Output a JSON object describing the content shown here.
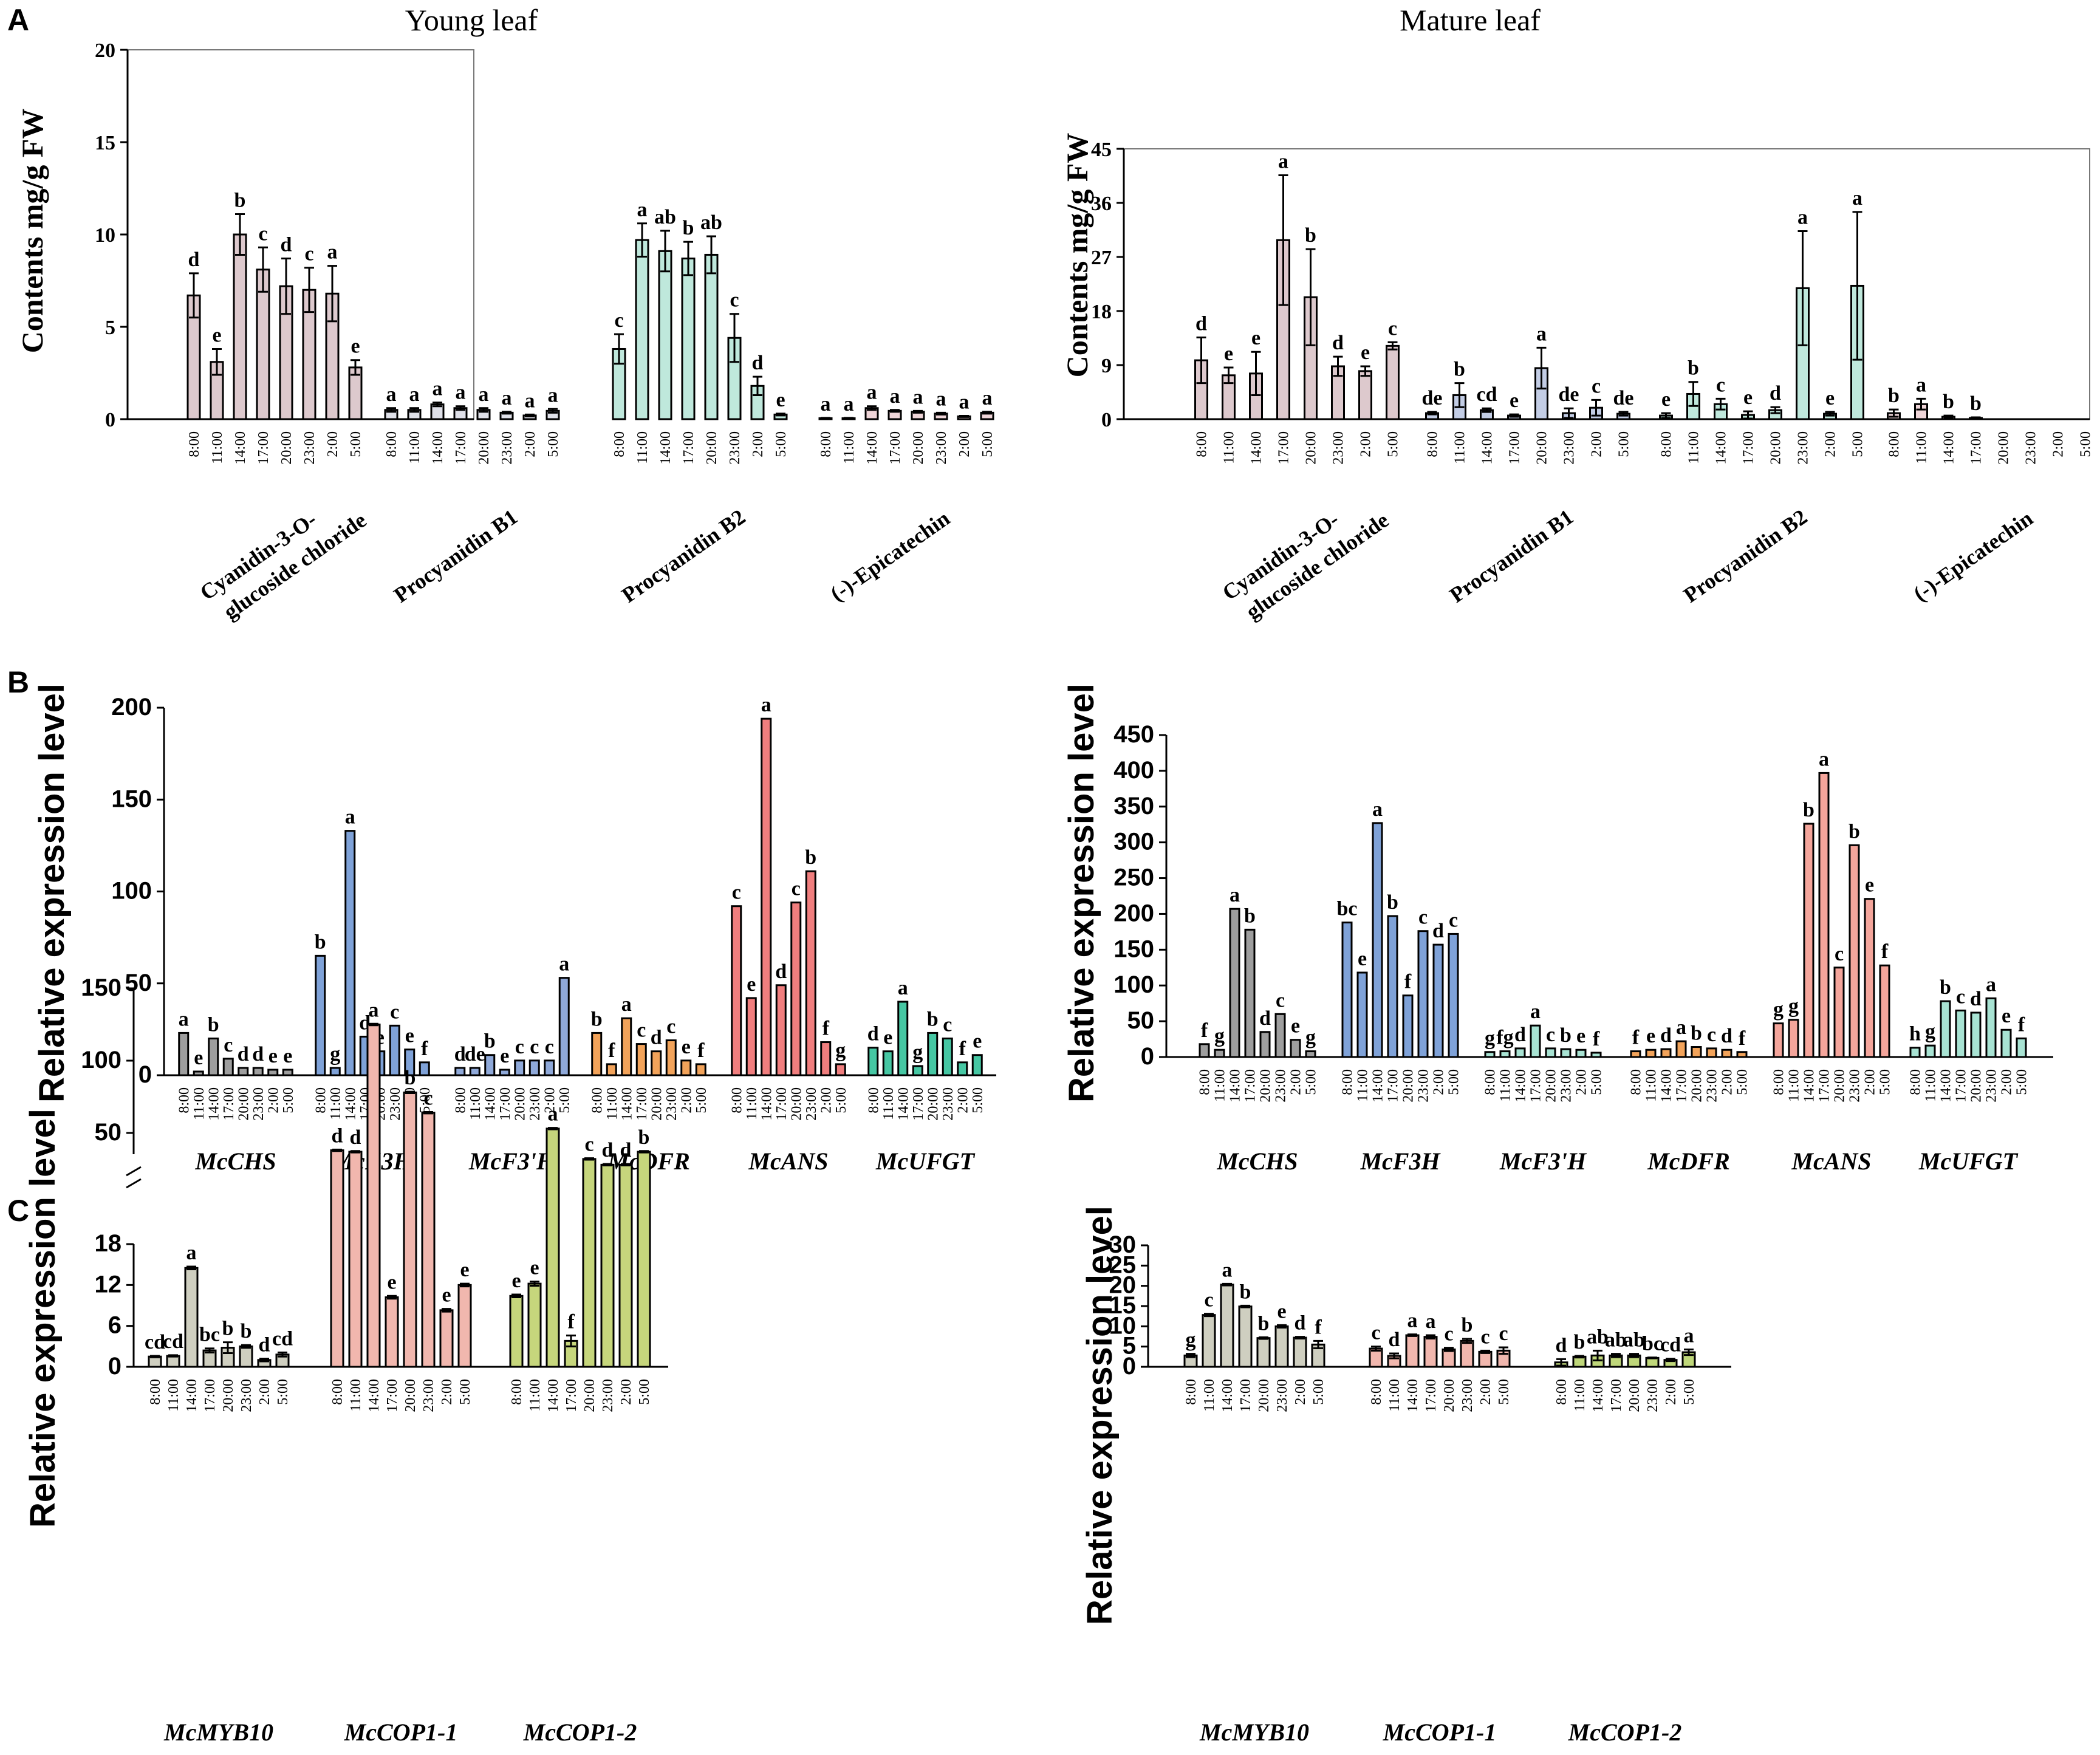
{
  "panel_labels": [
    "A",
    "B",
    "C"
  ],
  "titles": {
    "young": "Young leaf",
    "mature": "Mature leaf"
  },
  "times": [
    "8:00",
    "11:00",
    "14:00",
    "17:00",
    "20:00",
    "23:00",
    "2:00",
    "5:00"
  ],
  "colors": {
    "cyan_a": "#ddc9cd",
    "b1_young": "#dfe0e8",
    "b2_a": "#bfe8dc",
    "epi_a": "#efd5d8",
    "b1_mature": "#c3cde5",
    "chs": "#9e9e9e",
    "f3h": "#7fa2d8",
    "f3h2": "#8fa9d9",
    "dfr": "#f2a35a",
    "ans": "#f07e7e",
    "ans_m": "#f4a59b",
    "ufgt": "#46c7a3",
    "ufgt_m": "#a8e3d3",
    "myb10": "#cfcfc0",
    "cop1_1": "#f1b7ae",
    "cop1_2": "#c6d67c",
    "cop1_2m": "#bfd77a"
  },
  "chart_data": [
    {
      "id": "A_young",
      "type": "bar",
      "title": "Young leaf",
      "ylabel": "Contents mg/g FW",
      "ylim": [
        0,
        20
      ],
      "yticks": [
        "0",
        "5",
        "10",
        "15",
        "20"
      ],
      "yticks_values": [
        0,
        5,
        10,
        15,
        20
      ],
      "categories": [
        "8:00",
        "11:00",
        "14:00",
        "17:00",
        "20:00",
        "23:00",
        "2:00",
        "5:00"
      ],
      "groups": [
        {
          "name": "Cyanidin-3-O-glucoside chloride",
          "name_lines": [
            "Cyanidin-3-O-",
            "glucoside chloride"
          ],
          "color_key": "cyan_a",
          "values": [
            6.7,
            3.1,
            10.0,
            8.1,
            7.2,
            7.0,
            6.8,
            2.8
          ],
          "errors": [
            1.2,
            0.7,
            1.1,
            1.2,
            1.5,
            1.2,
            1.5,
            0.4
          ],
          "letters": [
            "d",
            "e",
            "b",
            "c",
            "d",
            "c",
            "a",
            "e"
          ]
        },
        {
          "name": "Procyanidin B1",
          "color_key": "b1_young",
          "values": [
            0.5,
            0.5,
            0.8,
            0.6,
            0.5,
            0.35,
            0.2,
            0.45
          ],
          "errors": [
            0.1,
            0.1,
            0.1,
            0.1,
            0.1,
            0.05,
            0.05,
            0.1
          ],
          "letters": [
            "a",
            "a",
            "a",
            "a",
            "a",
            "a",
            "a",
            "a"
          ]
        },
        {
          "name": "Procyanidin B2",
          "color_key": "b2_a",
          "values": [
            3.8,
            9.7,
            9.1,
            8.7,
            8.9,
            4.4,
            1.8,
            0.25
          ],
          "errors": [
            0.8,
            0.9,
            1.1,
            0.9,
            1.0,
            1.3,
            0.5,
            0.05
          ],
          "letters": [
            "c",
            "a",
            "ab",
            "b",
            "ab",
            "c",
            "d",
            "e"
          ]
        },
        {
          "name": "(-)-Epicatechin",
          "color_key": "epi_a",
          "values": [
            0.05,
            0.05,
            0.6,
            0.45,
            0.4,
            0.3,
            0.15,
            0.35
          ],
          "errors": [
            0.02,
            0.02,
            0.1,
            0.05,
            0.05,
            0.05,
            0.03,
            0.05
          ],
          "letters": [
            "a",
            "a",
            "a",
            "a",
            "a",
            "a",
            "a",
            "a"
          ]
        }
      ]
    },
    {
      "id": "A_mature",
      "type": "bar",
      "title": "Mature leaf",
      "ylabel": "Contents mg/g FW",
      "ylim": [
        0,
        45
      ],
      "yticks": [
        "0",
        "9",
        "18",
        "27",
        "36",
        "45"
      ],
      "yticks_values": [
        0,
        9,
        18,
        27,
        36,
        45
      ],
      "categories": [
        "8:00",
        "11:00",
        "14:00",
        "17:00",
        "20:00",
        "23:00",
        "2:00",
        "5:00"
      ],
      "groups": [
        {
          "name": "Cyanidin-3-O-glucoside chloride",
          "name_lines": [
            "Cyanidin-3-O-",
            "glucoside chloride"
          ],
          "color_key": "cyan_a",
          "values": [
            9.8,
            7.3,
            7.6,
            29.8,
            20.3,
            8.8,
            8.0,
            12.2
          ],
          "errors": [
            3.8,
            1.3,
            3.6,
            10.8,
            8.0,
            1.6,
            0.8,
            0.6
          ],
          "letters": [
            "d",
            "e",
            "e",
            "a",
            "b",
            "d",
            "e",
            "c"
          ]
        },
        {
          "name": "Procyanidin B1",
          "color_key": "b1_mature",
          "values": [
            1.0,
            4.0,
            1.5,
            0.6,
            8.5,
            1.0,
            1.9,
            0.9
          ],
          "errors": [
            0.2,
            2.0,
            0.3,
            0.2,
            3.4,
            0.8,
            1.3,
            0.3
          ],
          "letters": [
            "de",
            "b",
            "cd",
            "e",
            "a",
            "de",
            "c",
            "de"
          ]
        },
        {
          "name": "Procyanidin B2",
          "color_key": "b2_a",
          "values": [
            0.6,
            4.2,
            2.5,
            0.7,
            1.5,
            21.8,
            0.9,
            22.2
          ],
          "errors": [
            0.4,
            2.0,
            0.9,
            0.6,
            0.5,
            9.5,
            0.3,
            12.3
          ],
          "letters": [
            "e",
            "b",
            "c",
            "e",
            "d",
            "a",
            "e",
            "a"
          ]
        },
        {
          "name": "(-)-Epicatechin",
          "color_key": "epi_a",
          "values": [
            1.0,
            2.5,
            0.4,
            0.2,
            0,
            0,
            0,
            0
          ],
          "errors": [
            0.6,
            0.9,
            0.2,
            0.1,
            0,
            0,
            0,
            0
          ],
          "letters": [
            "b",
            "a",
            "b",
            "b",
            "",
            "",
            "",
            ""
          ]
        }
      ]
    },
    {
      "id": "B_young",
      "type": "bar",
      "ylabel": "Relative expression level",
      "ylim": [
        0,
        200
      ],
      "yticks": [
        "0",
        "50",
        "100",
        "150",
        "200"
      ],
      "yticks_values": [
        0,
        50,
        100,
        150,
        200
      ],
      "categories": [
        "8:00",
        "11:00",
        "14:00",
        "17:00",
        "20:00",
        "23:00",
        "2:00",
        "5:00"
      ],
      "groups": [
        {
          "name": "McCHS",
          "color_key": "chs",
          "values": [
            23,
            2,
            20,
            9,
            4,
            4,
            3,
            3
          ],
          "letters": [
            "a",
            "e",
            "b",
            "c",
            "d",
            "d",
            "e",
            "e"
          ]
        },
        {
          "name": "McF3H",
          "color_key": "f3h",
          "values": [
            65,
            4,
            133,
            21,
            13,
            27,
            14,
            7
          ],
          "letters": [
            "b",
            "g",
            "a",
            "d",
            "e",
            "c",
            "e",
            "f"
          ]
        },
        {
          "name": "McF3'H",
          "color_key": "f3h2",
          "values": [
            4,
            4,
            11,
            3,
            8,
            8,
            8,
            53
          ],
          "letters": [
            "d",
            "de",
            "b",
            "e",
            "c",
            "c",
            "c",
            "a"
          ]
        },
        {
          "name": "McDFR",
          "color_key": "dfr",
          "values": [
            23,
            6,
            31,
            17,
            13,
            19,
            8,
            6
          ],
          "letters": [
            "b",
            "f",
            "a",
            "c",
            "d",
            "c",
            "e",
            "f"
          ]
        },
        {
          "name": "McANS",
          "color_key": "ans",
          "values": [
            92,
            42,
            194,
            49,
            94,
            111,
            18,
            6
          ],
          "letters": [
            "c",
            "e",
            "a",
            "d",
            "c",
            "b",
            "f",
            "g"
          ]
        },
        {
          "name": "McUFGT",
          "color_key": "ufgt",
          "values": [
            15,
            13,
            40,
            5,
            23,
            20,
            7,
            11
          ],
          "letters": [
            "d",
            "e",
            "a",
            "g",
            "b",
            "c",
            "f",
            "e"
          ]
        }
      ]
    },
    {
      "id": "B_mature",
      "type": "bar",
      "ylabel": "Relative expression level",
      "ylim": [
        0,
        450
      ],
      "yticks": [
        "0",
        "50",
        "100",
        "150",
        "200",
        "250",
        "300",
        "350",
        "400",
        "450"
      ],
      "yticks_values": [
        0,
        50,
        100,
        150,
        200,
        250,
        300,
        350,
        400,
        450
      ],
      "categories": [
        "8:00",
        "11:00",
        "14:00",
        "17:00",
        "20:00",
        "23:00",
        "2:00",
        "5:00"
      ],
      "groups": [
        {
          "name": "McCHS",
          "color_key": "chs",
          "values": [
            18,
            10,
            207,
            178,
            35,
            60,
            24,
            8
          ],
          "letters": [
            "f",
            "g",
            "a",
            "b",
            "d",
            "c",
            "e",
            "g"
          ]
        },
        {
          "name": "McF3H",
          "color_key": "f3h",
          "values": [
            188,
            118,
            327,
            197,
            86,
            176,
            157,
            172
          ],
          "letters": [
            "bc",
            "e",
            "a",
            "b",
            "f",
            "c",
            "d",
            "c"
          ]
        },
        {
          "name": "McF3'H",
          "color_key": "ufgt_m",
          "values": [
            7,
            8,
            12,
            44,
            12,
            11,
            10,
            6
          ],
          "letters": [
            "g",
            "fg",
            "d",
            "a",
            "c",
            "b",
            "e",
            "f"
          ]
        },
        {
          "name": "McDFR",
          "color_key": "dfr",
          "values": [
            8,
            10,
            11,
            22,
            14,
            12,
            10,
            7
          ],
          "letters": [
            "f",
            "e",
            "d",
            "a",
            "b",
            "c",
            "d",
            "f"
          ]
        },
        {
          "name": "McANS",
          "color_key": "ans_m",
          "values": [
            47,
            52,
            326,
            397,
            125,
            296,
            221,
            128
          ],
          "letters": [
            "g",
            "g",
            "b",
            "a",
            "c",
            "b",
            "e",
            "f"
          ]
        },
        {
          "name": "McUFGT",
          "color_key": "ufgt_m",
          "values": [
            13,
            16,
            78,
            65,
            62,
            82,
            38,
            26
          ],
          "letters": [
            "h",
            "g",
            "b",
            "c",
            "d",
            "a",
            "e",
            "f"
          ]
        }
      ]
    },
    {
      "id": "C_young",
      "type": "bar",
      "ylabel": "Relative expression level",
      "axis_break": true,
      "yticks_low": [
        "0",
        "6",
        "12",
        "18"
      ],
      "yticks_low_values": [
        0,
        6,
        12,
        18
      ],
      "yticks_high": [
        "50",
        "100",
        "150"
      ],
      "yticks_high_values": [
        50,
        100,
        150
      ],
      "categories": [
        "8:00",
        "11:00",
        "14:00",
        "17:00",
        "20:00",
        "23:00",
        "2:00",
        "5:00"
      ],
      "groups": [
        {
          "name": "McMYB10",
          "color_key": "myb10",
          "values": [
            1.5,
            1.6,
            14.5,
            2.4,
            2.8,
            3.0,
            1.0,
            1.8
          ],
          "errors": [
            0.1,
            0.1,
            0.2,
            0.3,
            0.8,
            0.2,
            0.2,
            0.3
          ],
          "letters": [
            "cd",
            "cd",
            "a",
            "bc",
            "b",
            "b",
            "d",
            "cd"
          ]
        },
        {
          "name": "McCOP1-1",
          "color_key": "cop1_1",
          "values": [
            38,
            37,
            125,
            10.2,
            78,
            64,
            8.3,
            12
          ],
          "errors": [
            0.5,
            0.5,
            0.5,
            0.2,
            0.5,
            0.5,
            0.2,
            0.2
          ],
          "letters": [
            "d",
            "d",
            "a",
            "e",
            "b",
            "c",
            "e",
            "e"
          ]
        },
        {
          "name": "McCOP1-2",
          "color_key": "cop1_2",
          "values": [
            10.4,
            12.2,
            53,
            3.8,
            32,
            28,
            28,
            37
          ],
          "errors": [
            0.2,
            0.3,
            0.5,
            0.8,
            0.5,
            0.5,
            0.5,
            0.5
          ],
          "letters": [
            "e",
            "e",
            "a",
            "f",
            "c",
            "d",
            "d",
            "b"
          ]
        }
      ]
    },
    {
      "id": "C_mature",
      "type": "bar",
      "ylabel": "Relative expression level",
      "ylim": [
        0,
        30
      ],
      "yticks": [
        "0",
        "5",
        "10",
        "15",
        "20",
        "25",
        "30"
      ],
      "yticks_values": [
        0,
        5,
        10,
        15,
        20,
        25,
        30
      ],
      "categories": [
        "8:00",
        "11:00",
        "14:00",
        "17:00",
        "20:00",
        "23:00",
        "2:00",
        "5:00"
      ],
      "groups": [
        {
          "name": "McMYB10",
          "color_key": "myb10",
          "values": [
            2.8,
            12.8,
            20.3,
            14.9,
            7.1,
            10.0,
            7.2,
            5.5
          ],
          "errors": [
            0.4,
            0.3,
            0.2,
            0.2,
            0.2,
            0.3,
            0.2,
            0.9
          ],
          "letters": [
            "g",
            "c",
            "a",
            "b",
            "b",
            "e",
            "d",
            "f"
          ]
        },
        {
          "name": "McCOP1-1",
          "color_key": "cop1_1",
          "values": [
            4.5,
            2.7,
            7.8,
            7.4,
            4.3,
            6.4,
            3.7,
            4.0
          ],
          "errors": [
            0.5,
            0.6,
            0.2,
            0.4,
            0.4,
            0.5,
            0.3,
            0.8
          ],
          "letters": [
            "c",
            "d",
            "a",
            "a",
            "c",
            "b",
            "c",
            "c"
          ]
        },
        {
          "name": "McCOP1-2",
          "color_key": "cop1_2m",
          "values": [
            1.1,
            2.5,
            2.8,
            2.8,
            2.8,
            2.2,
            1.7,
            3.6
          ],
          "errors": [
            0.8,
            0.2,
            1.2,
            0.4,
            0.4,
            0.1,
            0.3,
            0.7
          ],
          "letters": [
            "d",
            "b",
            "ab",
            "ab",
            "ab",
            "bc",
            "cd",
            "a"
          ]
        }
      ]
    }
  ]
}
